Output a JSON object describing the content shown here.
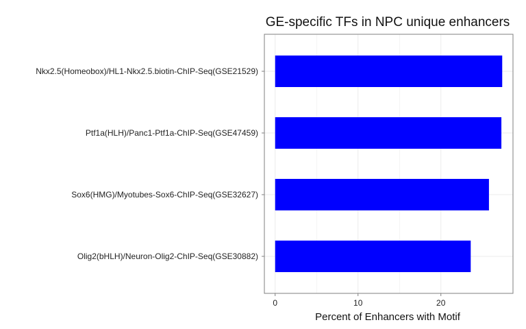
{
  "chart_data": {
    "type": "bar",
    "orientation": "horizontal",
    "title": "GE-specific TFs in NPC unique enhancers",
    "xlabel": "Percent of Enhancers with Motif",
    "ylabel": "",
    "categories": [
      "Nkx2.5(Homeobox)/HL1-Nkx2.5.biotin-ChIP-Seq(GSE21529)",
      "Ptf1a(HLH)/Panc1-Ptf1a-ChIP-Seq(GSE47459)",
      "Sox6(HMG)/Myotubes-Sox6-ChIP-Seq(GSE32627)",
      "Olig2(bHLH)/Neuron-Olig2-ChIP-Seq(GSE30882)"
    ],
    "values": [
      27.4,
      27.3,
      25.8,
      23.6
    ],
    "xlim": [
      -1.3,
      28.7
    ],
    "xticks": [
      0,
      10,
      20
    ],
    "xtick_labels": [
      "0",
      "10",
      "20"
    ],
    "grid": true,
    "bar_color": "#0000FF",
    "axis_color": "#7F7F7F",
    "grid_color": "#EBEBEB"
  }
}
